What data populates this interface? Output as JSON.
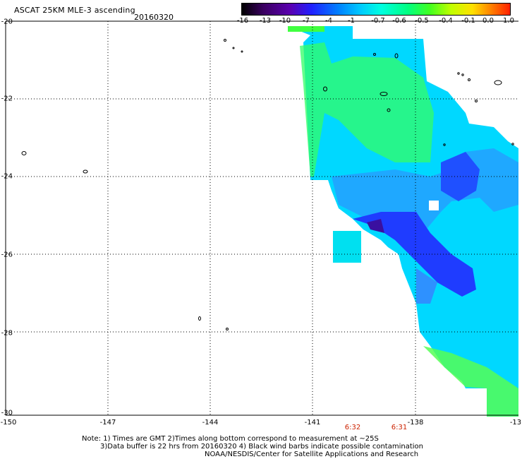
{
  "header": {
    "title": "ASCAT 25KM MLE-3 ascending",
    "date": "20160320"
  },
  "colorbar": {
    "ticks": [
      "-16",
      "-13",
      "-10",
      "-7",
      "-4",
      "-1",
      "-0.7",
      "-0.6",
      "-0.5",
      "-0.4",
      "-0.1",
      "0.0",
      "1.0"
    ],
    "colors": [
      "#000000",
      "#3a0060",
      "#5a00b0",
      "#2020ff",
      "#0060ff",
      "#00b0ff",
      "#00ffe0",
      "#00ffa0",
      "#30ff40",
      "#a0ff00",
      "#ffff00",
      "#ff8000",
      "#ff2000"
    ]
  },
  "map": {
    "lat_labels": [
      "-20",
      "-22",
      "-24",
      "-26",
      "-28",
      "-30"
    ],
    "lon_labels": [
      "-150",
      "-147",
      "-144",
      "-141",
      "-138",
      "-13"
    ],
    "time_labels": [
      "6:32",
      "6:31"
    ]
  },
  "notes": {
    "line1": "Note: 1) Times are GMT 2)Times along bottom correspond to measurement at ~25S",
    "line2": "3)Data buffer is 22 hrs from 20160320 4) Black wind barbs indicate possible contamination",
    "line3": "NOAA/NESDIS/Center for Satellite Applications and Research"
  }
}
